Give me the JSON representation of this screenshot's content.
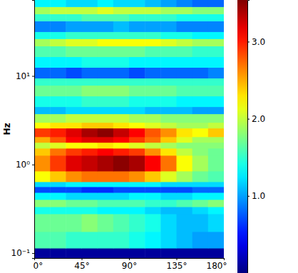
{
  "chart_data": {
    "type": "heatmap",
    "y_label": "Hz",
    "log": "y",
    "xlim": [
      0,
      180
    ],
    "xticks": [
      {
        "value": 0,
        "label": "0°"
      },
      {
        "value": 45,
        "label": "45°"
      },
      {
        "value": 90,
        "label": "90°"
      },
      {
        "value": 135,
        "label": "135°"
      },
      {
        "value": 180,
        "label": "180°"
      }
    ],
    "ylim": [
      0.088,
      72
    ],
    "yticks": [
      {
        "value": 0.1,
        "label": "10⁻¹"
      },
      {
        "value": 1,
        "label": "10⁰"
      },
      {
        "value": 10,
        "label": "10¹"
      }
    ],
    "x_edges": [
      0,
      15,
      30,
      45,
      60,
      75,
      90,
      105,
      120,
      135,
      150,
      165,
      180
    ],
    "y_edges": [
      0.088,
      0.114,
      0.175,
      0.278,
      0.334,
      0.403,
      0.484,
      0.562,
      0.64,
      0.845,
      1.27,
      1.53,
      1.78,
      2.06,
      2.58,
      2.99,
      3.74,
      4.5,
      5.94,
      7.85,
      9.46,
      12.5,
      16.5,
      21.8,
      26.3,
      31.6,
      41.8,
      50.3,
      60.5,
      72
    ],
    "values": [
      [
        0.1,
        0.1,
        0.1,
        0.1,
        0.1,
        0.1,
        0.1,
        0.1,
        0.1,
        0.1,
        0.1,
        0.1
      ],
      [
        1.6,
        1.6,
        1.5,
        1.5,
        1.5,
        1.5,
        1.4,
        1.3,
        1.2,
        1.1,
        1.0,
        1.0
      ],
      [
        1.7,
        1.7,
        1.7,
        1.8,
        1.7,
        1.6,
        1.5,
        1.4,
        1.2,
        1.1,
        1.1,
        1.2
      ],
      [
        1.4,
        1.4,
        1.4,
        1.4,
        1.3,
        1.3,
        1.3,
        1.2,
        1.1,
        1.1,
        1.2,
        1.3
      ],
      [
        1.8,
        1.8,
        1.7,
        1.7,
        1.6,
        1.6,
        1.6,
        1.5,
        1.5,
        1.6,
        1.7,
        1.8
      ],
      [
        1.3,
        1.3,
        1.2,
        1.2,
        1.2,
        1.2,
        1.3,
        1.3,
        1.2,
        1.2,
        1.3,
        1.3
      ],
      [
        0.7,
        0.7,
        0.7,
        0.6,
        0.6,
        0.7,
        0.7,
        0.7,
        0.7,
        0.7,
        0.8,
        0.8
      ],
      [
        1.2,
        1.2,
        1.3,
        1.3,
        1.3,
        1.3,
        1.3,
        1.3,
        1.2,
        1.2,
        1.2,
        1.2
      ],
      [
        2.2,
        2.4,
        2.6,
        2.7,
        2.7,
        2.7,
        2.6,
        2.4,
        2.1,
        1.9,
        1.7,
        1.6
      ],
      [
        2.6,
        2.9,
        3.2,
        3.3,
        3.4,
        3.5,
        3.4,
        3.1,
        2.7,
        2.2,
        1.9,
        1.7
      ],
      [
        2.4,
        2.7,
        2.9,
        3.0,
        3.1,
        3.0,
        2.9,
        2.6,
        2.3,
        2.0,
        1.8,
        1.7
      ],
      [
        2.0,
        2.1,
        2.2,
        2.2,
        2.3,
        2.2,
        2.1,
        2.0,
        1.9,
        1.8,
        1.8,
        1.8
      ],
      [
        2.5,
        2.8,
        3.1,
        3.2,
        3.2,
        3.1,
        2.9,
        2.7,
        2.4,
        2.1,
        1.9,
        1.9
      ],
      [
        2.9,
        3.0,
        3.2,
        3.4,
        3.5,
        3.3,
        3.1,
        2.8,
        2.6,
        2.3,
        2.2,
        2.4
      ],
      [
        2.2,
        2.3,
        2.3,
        2.4,
        2.4,
        2.3,
        2.2,
        2.1,
        2.0,
        1.9,
        1.9,
        2.0
      ],
      [
        1.9,
        1.9,
        2.0,
        2.0,
        2.0,
        2.0,
        1.9,
        1.9,
        1.8,
        1.8,
        1.8,
        1.8
      ],
      [
        1.1,
        1.1,
        1.2,
        1.2,
        1.2,
        1.2,
        1.2,
        1.1,
        1.1,
        1.1,
        1.0,
        1.0
      ],
      [
        1.4,
        1.4,
        1.4,
        1.5,
        1.5,
        1.5,
        1.4,
        1.4,
        1.4,
        1.3,
        1.3,
        1.3
      ],
      [
        1.7,
        1.7,
        1.7,
        1.8,
        1.8,
        1.8,
        1.7,
        1.7,
        1.7,
        1.6,
        1.6,
        1.6
      ],
      [
        1.5,
        1.5,
        1.5,
        1.5,
        1.5,
        1.5,
        1.5,
        1.5,
        1.5,
        1.5,
        1.5,
        1.5
      ],
      [
        0.8,
        0.8,
        0.7,
        0.8,
        0.8,
        0.8,
        0.7,
        0.8,
        0.8,
        0.8,
        0.8,
        0.9
      ],
      [
        1.3,
        1.3,
        1.3,
        1.4,
        1.4,
        1.4,
        1.3,
        1.3,
        1.3,
        1.3,
        1.3,
        1.3
      ],
      [
        1.6,
        1.6,
        1.7,
        1.7,
        1.7,
        1.7,
        1.7,
        1.6,
        1.6,
        1.6,
        1.5,
        1.5
      ],
      [
        1.9,
        2.0,
        2.1,
        2.1,
        2.2,
        2.2,
        2.2,
        2.2,
        2.1,
        2.0,
        1.9,
        1.9
      ],
      [
        1.4,
        1.4,
        1.5,
        1.5,
        1.5,
        1.5,
        1.5,
        1.5,
        1.4,
        1.4,
        1.3,
        1.3
      ],
      [
        0.9,
        0.9,
        1.0,
        1.0,
        1.0,
        1.1,
        1.0,
        1.0,
        1.0,
        0.9,
        0.9,
        0.9
      ],
      [
        1.5,
        1.5,
        1.5,
        1.6,
        1.6,
        1.6,
        1.5,
        1.5,
        1.5,
        1.4,
        1.4,
        1.4
      ],
      [
        1.9,
        2.0,
        2.0,
        2.0,
        2.1,
        2.0,
        2.0,
        2.0,
        1.9,
        1.9,
        1.8,
        1.8
      ],
      [
        1.3,
        1.3,
        1.2,
        1.2,
        1.3,
        1.2,
        1.2,
        1.1,
        1.0,
        0.9,
        0.8,
        0.8
      ]
    ],
    "colorbar": {
      "range": [
        0,
        3.54
      ],
      "ticks": [
        1,
        2,
        3
      ]
    }
  }
}
